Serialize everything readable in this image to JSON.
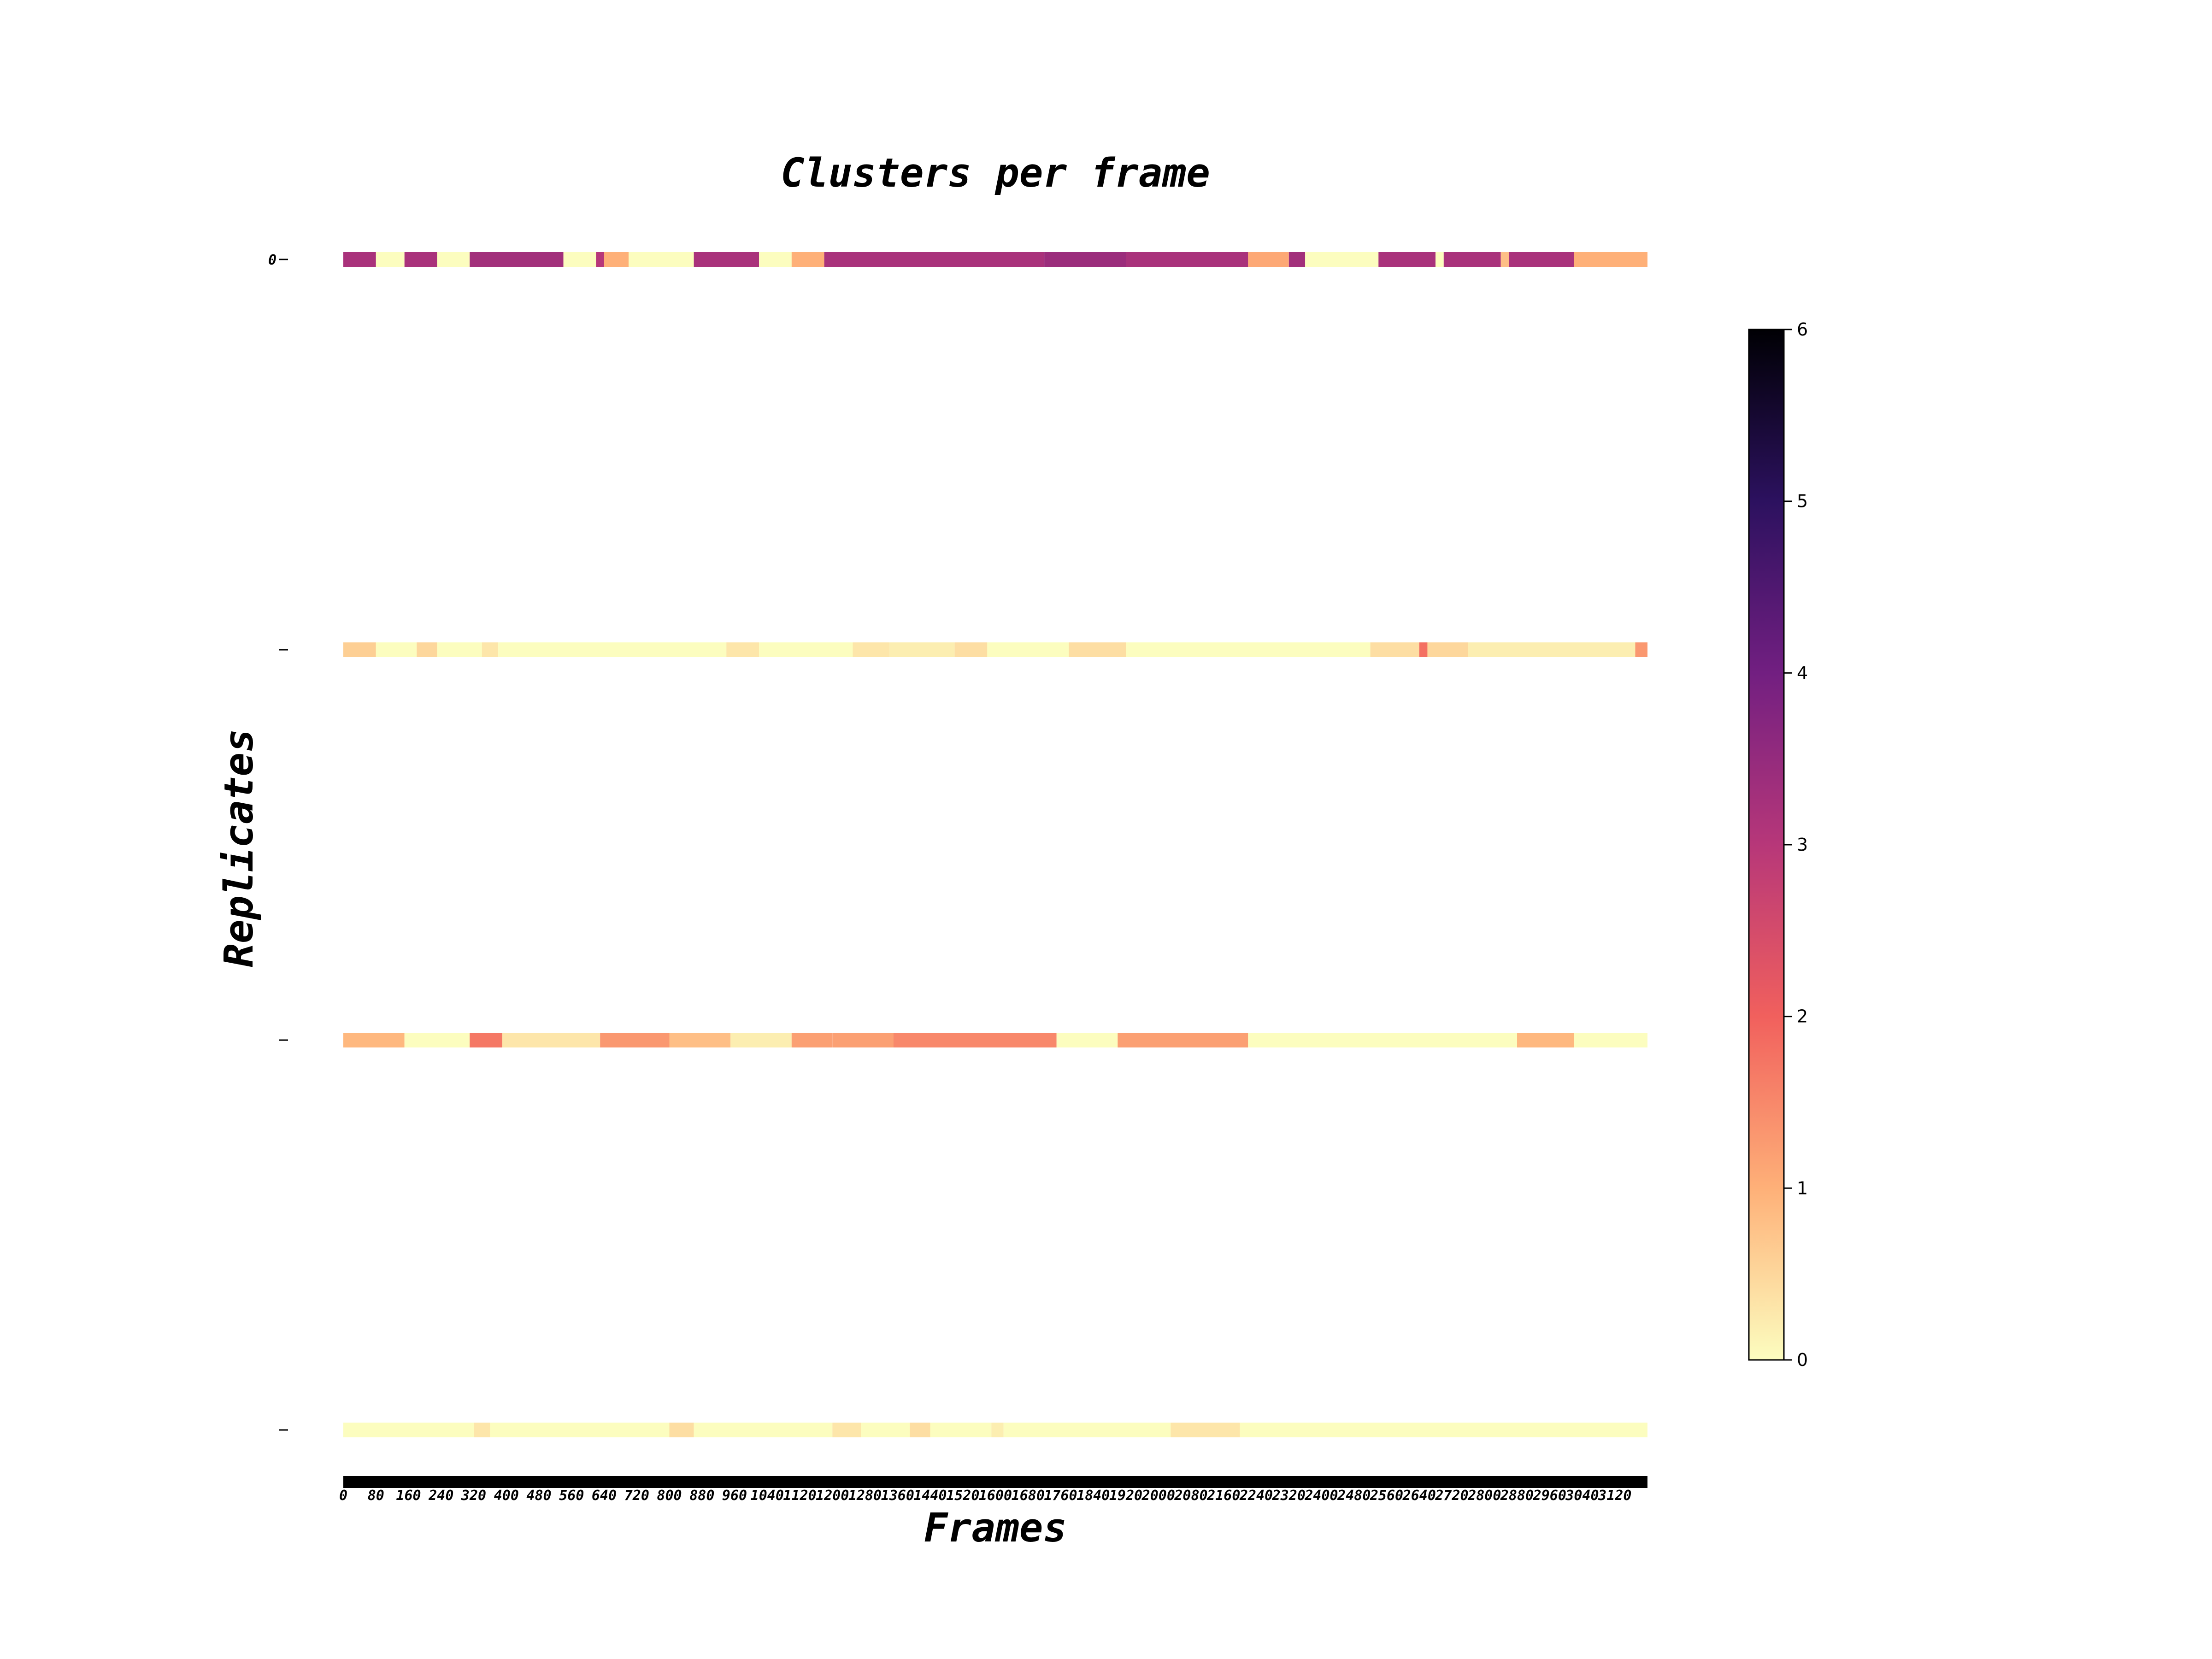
{
  "chart_data": {
    "type": "heatmap",
    "title": "Clusters per frame",
    "xlabel": "Frames",
    "ylabel": "Replicates",
    "x_tick_labels": [
      "0",
      "80",
      "160",
      "240",
      "320",
      "400",
      "480",
      "560",
      "640",
      "720",
      "800",
      "880",
      "960",
      "1040",
      "1120",
      "1200",
      "1280",
      "1360",
      "1440",
      "1520",
      "1600",
      "1680",
      "1760",
      "1840",
      "1920",
      "2000",
      "2080",
      "2160",
      "2240",
      "2320",
      "2400",
      "2480",
      "2560",
      "2640",
      "2720",
      "2800",
      "2880",
      "2960",
      "3040",
      "3120"
    ],
    "x_range": [
      0,
      3200
    ],
    "y_tick_labels": [
      "0",
      "",
      "",
      ""
    ],
    "colormap": "magma_r",
    "colorbar": {
      "range": [
        0,
        6
      ],
      "ticks": [
        "0",
        "1",
        "2",
        "3",
        "4",
        "5",
        "6"
      ],
      "colors": [
        "#fcfdbf",
        "#feb078",
        "#f1605d",
        "#b73779",
        "#721f81",
        "#2c115f",
        "#000004"
      ]
    },
    "rows": [
      {
        "segments": [
          {
            "start": 0,
            "end": 80,
            "value": 3.2
          },
          {
            "start": 80,
            "end": 150,
            "value": 0
          },
          {
            "start": 150,
            "end": 230,
            "value": 3.2
          },
          {
            "start": 230,
            "end": 310,
            "value": 0
          },
          {
            "start": 310,
            "end": 540,
            "value": 3.3
          },
          {
            "start": 540,
            "end": 620,
            "value": 0
          },
          {
            "start": 620,
            "end": 640,
            "value": 3.0
          },
          {
            "start": 640,
            "end": 700,
            "value": 1.0
          },
          {
            "start": 700,
            "end": 860,
            "value": 0
          },
          {
            "start": 860,
            "end": 1020,
            "value": 3.2
          },
          {
            "start": 1020,
            "end": 1100,
            "value": 0
          },
          {
            "start": 1100,
            "end": 1180,
            "value": 1.0
          },
          {
            "start": 1180,
            "end": 1720,
            "value": 3.2
          },
          {
            "start": 1720,
            "end": 1920,
            "value": 3.4
          },
          {
            "start": 1920,
            "end": 2220,
            "value": 3.2
          },
          {
            "start": 2220,
            "end": 2320,
            "value": 1.1
          },
          {
            "start": 2320,
            "end": 2360,
            "value": 3.3
          },
          {
            "start": 2360,
            "end": 2540,
            "value": 0
          },
          {
            "start": 2540,
            "end": 2680,
            "value": 3.2
          },
          {
            "start": 2680,
            "end": 2700,
            "value": 0
          },
          {
            "start": 2700,
            "end": 2840,
            "value": 3.2
          },
          {
            "start": 2840,
            "end": 2860,
            "value": 0.8
          },
          {
            "start": 2860,
            "end": 3020,
            "value": 3.2
          },
          {
            "start": 3020,
            "end": 3200,
            "value": 1.0
          }
        ]
      },
      {
        "segments": [
          {
            "start": 0,
            "end": 80,
            "value": 0.6
          },
          {
            "start": 80,
            "end": 180,
            "value": 0
          },
          {
            "start": 180,
            "end": 230,
            "value": 0.5
          },
          {
            "start": 230,
            "end": 340,
            "value": 0
          },
          {
            "start": 340,
            "end": 380,
            "value": 0.3
          },
          {
            "start": 380,
            "end": 940,
            "value": 0
          },
          {
            "start": 940,
            "end": 1020,
            "value": 0.3
          },
          {
            "start": 1020,
            "end": 1250,
            "value": 0
          },
          {
            "start": 1250,
            "end": 1340,
            "value": 0.3
          },
          {
            "start": 1340,
            "end": 1500,
            "value": 0.2
          },
          {
            "start": 1500,
            "end": 1580,
            "value": 0.4
          },
          {
            "start": 1580,
            "end": 1780,
            "value": 0
          },
          {
            "start": 1780,
            "end": 1920,
            "value": 0.4
          },
          {
            "start": 1920,
            "end": 2520,
            "value": 0
          },
          {
            "start": 2520,
            "end": 2640,
            "value": 0.4
          },
          {
            "start": 2640,
            "end": 2660,
            "value": 1.8
          },
          {
            "start": 2660,
            "end": 2760,
            "value": 0.5
          },
          {
            "start": 2760,
            "end": 3170,
            "value": 0.2
          },
          {
            "start": 3170,
            "end": 3200,
            "value": 1.3
          }
        ]
      },
      {
        "segments": [
          {
            "start": 0,
            "end": 150,
            "value": 0.9
          },
          {
            "start": 150,
            "end": 310,
            "value": 0
          },
          {
            "start": 310,
            "end": 390,
            "value": 1.7
          },
          {
            "start": 390,
            "end": 630,
            "value": 0.3
          },
          {
            "start": 630,
            "end": 800,
            "value": 1.3
          },
          {
            "start": 800,
            "end": 950,
            "value": 0.8
          },
          {
            "start": 950,
            "end": 1100,
            "value": 0.2
          },
          {
            "start": 1100,
            "end": 1200,
            "value": 1.2
          },
          {
            "start": 1200,
            "end": 1350,
            "value": 1.2
          },
          {
            "start": 1350,
            "end": 1750,
            "value": 1.5
          },
          {
            "start": 1750,
            "end": 1900,
            "value": 0
          },
          {
            "start": 1900,
            "end": 2220,
            "value": 1.2
          },
          {
            "start": 2220,
            "end": 2880,
            "value": 0
          },
          {
            "start": 2880,
            "end": 3020,
            "value": 0.9
          },
          {
            "start": 3020,
            "end": 3200,
            "value": 0
          }
        ]
      },
      {
        "segments": [
          {
            "start": 0,
            "end": 320,
            "value": 0
          },
          {
            "start": 320,
            "end": 360,
            "value": 0.3
          },
          {
            "start": 360,
            "end": 800,
            "value": 0
          },
          {
            "start": 800,
            "end": 860,
            "value": 0.4
          },
          {
            "start": 860,
            "end": 1200,
            "value": 0
          },
          {
            "start": 1200,
            "end": 1270,
            "value": 0.3
          },
          {
            "start": 1270,
            "end": 1390,
            "value": 0
          },
          {
            "start": 1390,
            "end": 1440,
            "value": 0.4
          },
          {
            "start": 1440,
            "end": 1590,
            "value": 0
          },
          {
            "start": 1590,
            "end": 1620,
            "value": 0.2
          },
          {
            "start": 1620,
            "end": 2030,
            "value": 0
          },
          {
            "start": 2030,
            "end": 2200,
            "value": 0.3
          },
          {
            "start": 2200,
            "end": 3200,
            "value": 0
          }
        ]
      }
    ]
  }
}
